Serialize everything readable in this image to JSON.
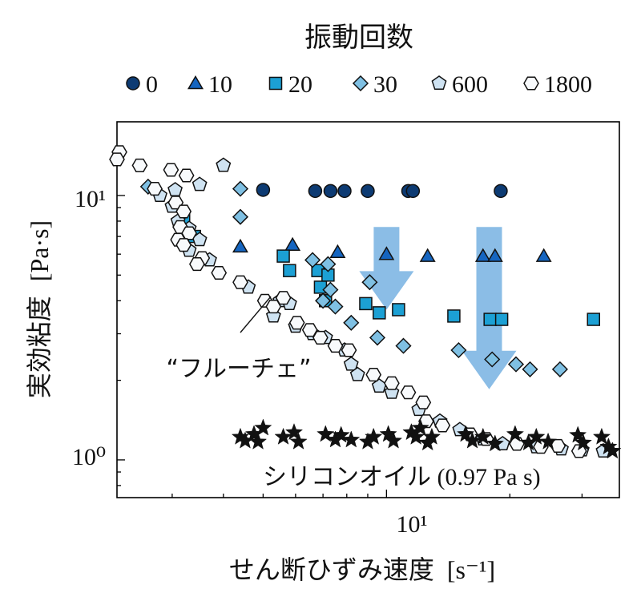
{
  "chart_data": {
    "type": "scatter",
    "legend_title": "振動回数",
    "legend_position": "top",
    "ylabel": "実効粘度",
    "ylabel_unit": "[Pa·s]",
    "xlabel": "せん断ひずみ速度",
    "xlabel_unit": "[s⁻¹]",
    "x_scale": "log",
    "y_scale": "log",
    "xlim": [
      2.2,
      37
    ],
    "ylim": [
      0.72,
      19
    ],
    "x_tick_label": "10¹",
    "y_tick_labels": [
      "10¹",
      "10⁰"
    ],
    "grid": false,
    "series": [
      {
        "name": "0",
        "marker": "circle",
        "color": "#0d3b73",
        "points": [
          [
            5.0,
            10.5
          ],
          [
            6.7,
            10.4
          ],
          [
            7.3,
            10.4
          ],
          [
            7.9,
            10.4
          ],
          [
            9.0,
            10.4
          ],
          [
            11.3,
            10.4
          ],
          [
            11.6,
            10.4
          ],
          [
            19.0,
            10.4
          ]
        ]
      },
      {
        "name": "10",
        "marker": "triangle",
        "color": "#1565c0",
        "points": [
          [
            4.4,
            6.4
          ],
          [
            5.9,
            6.5
          ],
          [
            7.6,
            6.1
          ],
          [
            10.0,
            6.0
          ],
          [
            12.6,
            5.9
          ],
          [
            17.2,
            5.9
          ],
          [
            18.4,
            5.9
          ],
          [
            24.2,
            5.9
          ]
        ]
      },
      {
        "name": "20",
        "marker": "square",
        "color": "#1ca0d4",
        "points": [
          [
            3.2,
            8.2
          ],
          [
            3.4,
            7.0
          ],
          [
            5.6,
            5.9
          ],
          [
            5.8,
            5.2
          ],
          [
            6.8,
            5.2
          ],
          [
            6.9,
            4.5
          ],
          [
            7.2,
            5.0
          ],
          [
            7.1,
            4.0
          ],
          [
            8.9,
            3.9
          ],
          [
            9.6,
            3.6
          ],
          [
            10.7,
            3.7
          ],
          [
            14.6,
            3.5
          ],
          [
            17.9,
            3.4
          ],
          [
            19.1,
            3.4
          ],
          [
            32.0,
            3.4
          ]
        ]
      },
      {
        "name": "30",
        "marker": "diamond",
        "color": "#7fc0e3",
        "points": [
          [
            2.62,
            10.8
          ],
          [
            4.4,
            10.6
          ],
          [
            4.4,
            8.3
          ],
          [
            6.6,
            5.7
          ],
          [
            7.2,
            5.5
          ],
          [
            7.3,
            4.4
          ],
          [
            7.0,
            4.0
          ],
          [
            7.5,
            3.8
          ],
          [
            9.1,
            4.7
          ],
          [
            8.2,
            3.3
          ],
          [
            9.5,
            2.9
          ],
          [
            11.0,
            2.7
          ],
          [
            15.0,
            2.6
          ],
          [
            18.1,
            2.4
          ],
          [
            20.7,
            2.3
          ],
          [
            22.4,
            2.2
          ],
          [
            26.5,
            2.2
          ]
        ]
      },
      {
        "name": "600",
        "marker": "pentagon",
        "color": "#cfe3f2",
        "points": [
          [
            4.0,
            13.0
          ],
          [
            3.5,
            11.0
          ],
          [
            3.05,
            10.5
          ],
          [
            2.8,
            10.0
          ],
          [
            3.0,
            9.1
          ],
          [
            3.1,
            8.0
          ],
          [
            3.3,
            7.5
          ],
          [
            3.5,
            6.8
          ],
          [
            3.3,
            6.2
          ],
          [
            3.7,
            5.7
          ],
          [
            4.6,
            4.5
          ],
          [
            5.5,
            4.0
          ],
          [
            5.8,
            3.9
          ],
          [
            5.3,
            3.5
          ],
          [
            6.0,
            3.2
          ],
          [
            6.6,
            3.0
          ],
          [
            7.1,
            2.9
          ],
          [
            7.9,
            2.6
          ],
          [
            8.2,
            2.3
          ],
          [
            8.5,
            2.1
          ],
          [
            9.6,
            1.9
          ],
          [
            10.3,
            1.8
          ],
          [
            12.0,
            1.55
          ],
          [
            13.5,
            1.4
          ],
          [
            15.1,
            1.3
          ],
          [
            17.2,
            1.2
          ],
          [
            19.2,
            1.15
          ],
          [
            23.2,
            1.12
          ],
          [
            26.7,
            1.1
          ],
          [
            30.0,
            1.09
          ],
          [
            33.8,
            1.08
          ]
        ]
      },
      {
        "name": "1800",
        "marker": "hexagon",
        "color": "#f8fafc",
        "points": [
          [
            2.23,
            14.6
          ],
          [
            2.2,
            13.7
          ],
          [
            2.5,
            13.0
          ],
          [
            2.72,
            10.6
          ],
          [
            2.98,
            12.5
          ],
          [
            3.25,
            11.9
          ],
          [
            3.06,
            9.4
          ],
          [
            3.2,
            8.7
          ],
          [
            3.14,
            7.6
          ],
          [
            3.3,
            7.2
          ],
          [
            3.1,
            6.8
          ],
          [
            3.2,
            6.5
          ],
          [
            3.55,
            5.8
          ],
          [
            3.45,
            5.5
          ],
          [
            3.9,
            5.1
          ],
          [
            4.4,
            4.7
          ],
          [
            5.05,
            4.0
          ],
          [
            5.3,
            3.8
          ],
          [
            5.6,
            4.1
          ],
          [
            6.05,
            3.3
          ],
          [
            6.5,
            3.1
          ],
          [
            6.9,
            2.9
          ],
          [
            7.5,
            2.7
          ],
          [
            8.1,
            2.6
          ],
          [
            9.3,
            2.1
          ],
          [
            10.3,
            1.95
          ],
          [
            11.3,
            1.8
          ],
          [
            12.3,
            1.65
          ],
          [
            12.5,
            1.4
          ],
          [
            13.7,
            1.35
          ],
          [
            16.0,
            1.25
          ],
          [
            17.5,
            1.2
          ],
          [
            20.8,
            1.15
          ],
          [
            23.8,
            1.12
          ],
          [
            26.2,
            1.13
          ],
          [
            29.5,
            1.08
          ]
        ]
      },
      {
        "name": "シリコンオイル(0.97 Pa s)",
        "marker": "star",
        "color": "#111111",
        "points": [
          [
            4.4,
            1.22
          ],
          [
            4.52,
            1.18
          ],
          [
            4.75,
            1.25
          ],
          [
            4.86,
            1.17
          ],
          [
            5.0,
            1.32
          ],
          [
            5.6,
            1.22
          ],
          [
            5.95,
            1.27
          ],
          [
            6.1,
            1.17
          ],
          [
            7.1,
            1.25
          ],
          [
            7.5,
            1.19
          ],
          [
            7.75,
            1.24
          ],
          [
            8.2,
            1.19
          ],
          [
            9.0,
            1.17
          ],
          [
            9.3,
            1.22
          ],
          [
            10.1,
            1.25
          ],
          [
            10.4,
            1.18
          ],
          [
            11.5,
            1.27
          ],
          [
            11.8,
            1.22
          ],
          [
            12.1,
            1.32
          ],
          [
            12.6,
            1.16
          ],
          [
            12.9,
            1.22
          ],
          [
            15.6,
            1.25
          ],
          [
            16.2,
            1.18
          ],
          [
            17.2,
            1.22
          ],
          [
            18.4,
            1.15
          ],
          [
            20.6,
            1.25
          ],
          [
            22.2,
            1.16
          ],
          [
            23.2,
            1.22
          ],
          [
            24.8,
            1.17
          ],
          [
            29.3,
            1.24
          ],
          [
            30.2,
            1.16
          ],
          [
            33.5,
            1.22
          ],
          [
            34.8,
            1.12
          ],
          [
            35.6,
            1.08
          ]
        ]
      }
    ],
    "annotations": [
      {
        "text": "“フルーチェ”",
        "kind": "callout",
        "x": 3.4,
        "y": 2.2,
        "target_x": 4.6,
        "target_y": 4.4
      },
      {
        "text": "シリコンオイル",
        "kind": "label",
        "x": 4.2,
        "y": 0.92
      },
      {
        "text": "(0.97 Pa s)",
        "kind": "label",
        "x": 4.2,
        "y": 0.92
      }
    ],
    "arrows": [
      {
        "x": 10.0,
        "y_from": 7.6,
        "y_to": 3.7,
        "color": "#8bbde6"
      },
      {
        "x": 17.8,
        "y_from": 7.6,
        "y_to": 1.85,
        "color": "#8bbde6"
      }
    ]
  }
}
